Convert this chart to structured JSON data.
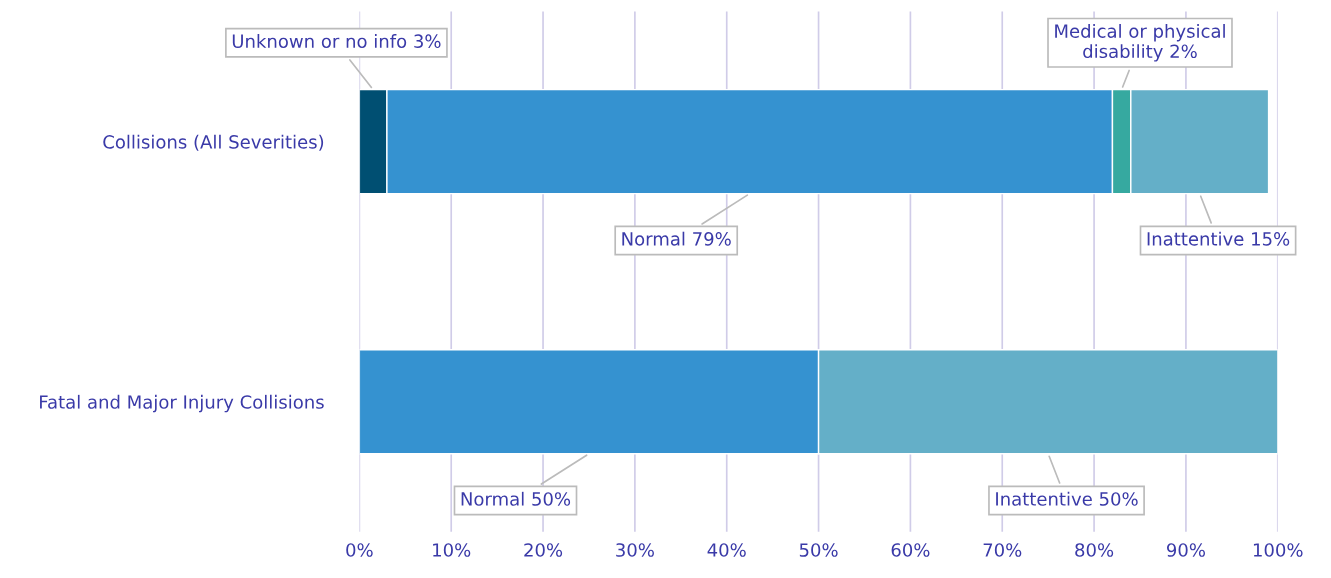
{
  "chart_data": {
    "type": "bar",
    "orientation": "horizontal",
    "stacked": true,
    "categories": [
      "Collisions (All Severities)",
      "Fatal and Major Injury Collisions"
    ],
    "series": [
      {
        "color": "#004f72",
        "values": [
          3,
          null
        ],
        "value_labels": [
          "Unknown or no info 3%",
          null
        ]
      },
      {
        "color": "#3592d0",
        "values": [
          79,
          50
        ],
        "value_labels": [
          "Normal 79%",
          "Normal 50%"
        ]
      },
      {
        "color": "#36a9a0",
        "values": [
          2,
          null
        ],
        "value_labels": [
          "Medical or physical disability 2%",
          null
        ]
      },
      {
        "color": "#64afc8",
        "values": [
          15,
          50
        ],
        "value_labels": [
          "Inattentive 15%",
          "Inattentive 50%"
        ]
      }
    ],
    "xlim": [
      0,
      100
    ],
    "xticks": [
      {
        "value": 0,
        "label": "0%"
      },
      {
        "value": 10,
        "label": "10%"
      },
      {
        "value": 20,
        "label": "20%"
      },
      {
        "value": 30,
        "label": "30%"
      },
      {
        "value": 40,
        "label": "40%"
      },
      {
        "value": 50,
        "label": "50%"
      },
      {
        "value": 60,
        "label": "60%"
      },
      {
        "value": 70,
        "label": "70%"
      },
      {
        "value": 80,
        "label": "80%"
      },
      {
        "value": 90,
        "label": "90%"
      },
      {
        "value": 100,
        "label": "100%"
      }
    ],
    "grid": "x",
    "legend": false
  }
}
